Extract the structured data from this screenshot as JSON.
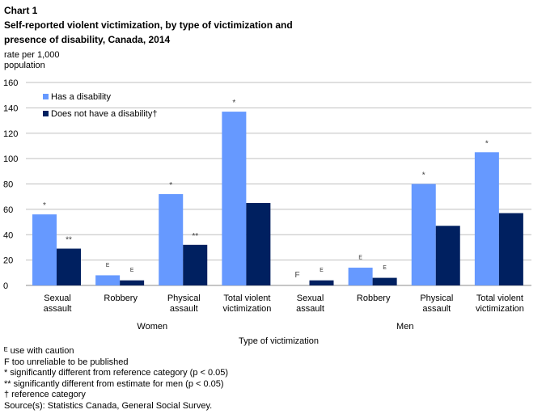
{
  "header": {
    "chart_label": "Chart 1",
    "title_line1": "Self-reported violent victimization, by type of victimization and",
    "title_line2": "presence of disability, Canada, 2014"
  },
  "colors": {
    "has_disability": "#6699ff",
    "no_disability": "#002060",
    "grid": "#bfbfbf"
  },
  "chart_data": {
    "type": "bar",
    "ylabel": "rate per 1,000 population",
    "ylabel_line1": "rate per 1,000",
    "ylabel_line2": "population",
    "xlabel": "Type of victimization",
    "ylim": [
      0,
      160
    ],
    "yticks": [
      0,
      20,
      40,
      60,
      80,
      100,
      120,
      140,
      160
    ],
    "grid": true,
    "legend_position": "top-left",
    "groups": [
      {
        "label": "Women",
        "categories": [
          {
            "line1": "Sexual",
            "line2": "assault"
          },
          {
            "line1": "Robbery",
            "line2": ""
          },
          {
            "line1": "Physical",
            "line2": "assault"
          },
          {
            "line1": "Total violent",
            "line2": "victimization"
          }
        ]
      },
      {
        "label": "Men",
        "categories": [
          {
            "line1": "Sexual",
            "line2": "assault"
          },
          {
            "line1": "Robbery",
            "line2": ""
          },
          {
            "line1": "Physical",
            "line2": "assault"
          },
          {
            "line1": "Total violent",
            "line2": "victimization"
          }
        ]
      }
    ],
    "series": [
      {
        "name": "Has a disability",
        "values": [
          56,
          8,
          72,
          137,
          null,
          14,
          80,
          105
        ],
        "markers": [
          "*",
          "ᴱ",
          "*",
          "*",
          "F",
          "ᴱ",
          "*",
          "*"
        ]
      },
      {
        "name": "Does not have a disability†",
        "values": [
          29,
          4,
          32,
          65,
          4,
          6,
          47,
          57
        ],
        "markers": [
          "**",
          "ᴱ",
          "**",
          "",
          "ᴱ",
          "ᴱ",
          "",
          ""
        ]
      }
    ]
  },
  "footnotes": [
    "ᴱ use with caution",
    "F too unreliable to be published",
    "* significantly different from reference category (p < 0.05)",
    "** significantly different from estimate for men (p < 0.05)",
    "† reference category",
    "Source(s): Statistics Canada, General Social Survey."
  ]
}
